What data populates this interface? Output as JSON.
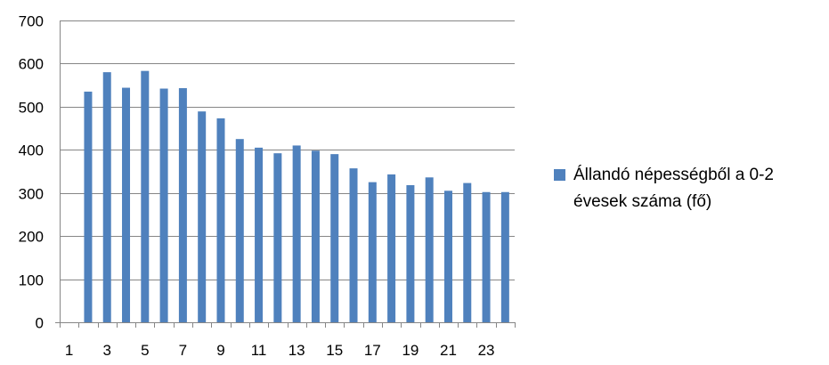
{
  "chart_data": {
    "type": "bar",
    "x": [
      1,
      2,
      3,
      4,
      5,
      6,
      7,
      8,
      9,
      10,
      11,
      12,
      13,
      14,
      15,
      16,
      17,
      18,
      19,
      20,
      21,
      22,
      23,
      24
    ],
    "x_tick_labels": [
      "1",
      "3",
      "5",
      "7",
      "9",
      "11",
      "13",
      "15",
      "17",
      "19",
      "21",
      "23"
    ],
    "series": [
      {
        "name": "Állandó népességből a 0-2 évesek száma (fő)",
        "values": [
          0,
          535,
          580,
          544,
          583,
          542,
          543,
          489,
          473,
          425,
          405,
          392,
          410,
          398,
          390,
          357,
          325,
          343,
          318,
          336,
          305,
          323,
          302,
          302
        ]
      }
    ],
    "ylim": [
      0,
      700
    ],
    "y_ticks": [
      0,
      100,
      200,
      300,
      400,
      500,
      600,
      700
    ],
    "grid": "horizontal",
    "legend_position": "right",
    "bar_color": "#4F81BD",
    "title": "",
    "xlabel": "",
    "ylabel": ""
  }
}
